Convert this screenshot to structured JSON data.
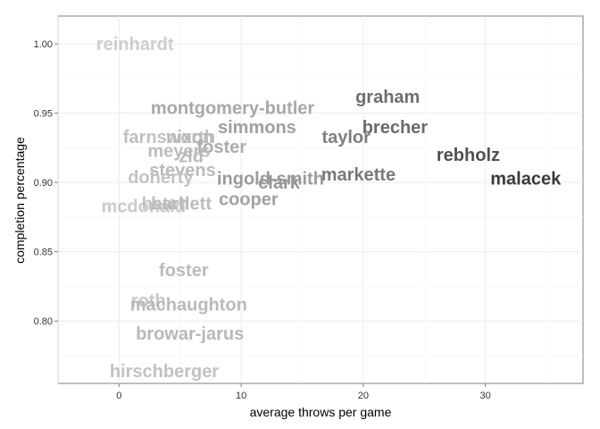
{
  "chart_data": {
    "type": "scatter",
    "title": "",
    "xlabel": "average throws per game",
    "ylabel": "completion percentage",
    "xlim": [
      -5,
      38
    ],
    "ylim": [
      0.755,
      1.02
    ],
    "x_ticks": [
      0,
      10,
      20,
      30
    ],
    "x_tick_labels": [
      "0",
      "10",
      "20",
      "30"
    ],
    "y_ticks": [
      0.8,
      0.85,
      0.9,
      0.95,
      1.0
    ],
    "y_tick_labels": [
      "0.80",
      "0.85",
      "0.90",
      "0.95",
      "1.00"
    ],
    "grid": true,
    "marker": "text labels shaded from light gray (few throws) to dark gray (many throws)",
    "points": [
      {
        "label": "reinhardt",
        "x": 1.3,
        "y": 1.0
      },
      {
        "label": "montgomery-butler",
        "x": 9.3,
        "y": 0.954
      },
      {
        "label": "graham",
        "x": 22.0,
        "y": 0.962
      },
      {
        "label": "simmons",
        "x": 11.3,
        "y": 0.94
      },
      {
        "label": "brecher",
        "x": 22.6,
        "y": 0.94
      },
      {
        "label": "farnsworth",
        "x": 4.1,
        "y": 0.933
      },
      {
        "label": "nixon",
        "x": 5.8,
        "y": 0.933
      },
      {
        "label": "taylor",
        "x": 18.6,
        "y": 0.933
      },
      {
        "label": "foster",
        "x": 8.4,
        "y": 0.926
      },
      {
        "label": "meyers",
        "x": 4.9,
        "y": 0.923
      },
      {
        "label": "zid",
        "x": 5.9,
        "y": 0.919
      },
      {
        "label": "rebholz",
        "x": 28.6,
        "y": 0.92
      },
      {
        "label": "stevens",
        "x": 5.2,
        "y": 0.909
      },
      {
        "label": "markette",
        "x": 19.6,
        "y": 0.906
      },
      {
        "label": "doherty",
        "x": 3.4,
        "y": 0.904
      },
      {
        "label": "ingold-smith",
        "x": 12.4,
        "y": 0.903
      },
      {
        "label": "clark",
        "x": 13.1,
        "y": 0.9
      },
      {
        "label": "malacek",
        "x": 33.3,
        "y": 0.903
      },
      {
        "label": "cooper",
        "x": 10.6,
        "y": 0.888
      },
      {
        "label": "mcdonald",
        "x": 2.0,
        "y": 0.883
      },
      {
        "label": "hatch",
        "x": 3.8,
        "y": 0.885
      },
      {
        "label": "bartlett",
        "x": 5.1,
        "y": 0.885
      },
      {
        "label": "foster",
        "x": 5.3,
        "y": 0.837
      },
      {
        "label": "roth",
        "x": 2.4,
        "y": 0.815
      },
      {
        "label": "machaughton",
        "x": 5.7,
        "y": 0.812
      },
      {
        "label": "browar-jarus",
        "x": 5.8,
        "y": 0.791
      },
      {
        "label": "hirschberger",
        "x": 3.7,
        "y": 0.764
      }
    ]
  }
}
